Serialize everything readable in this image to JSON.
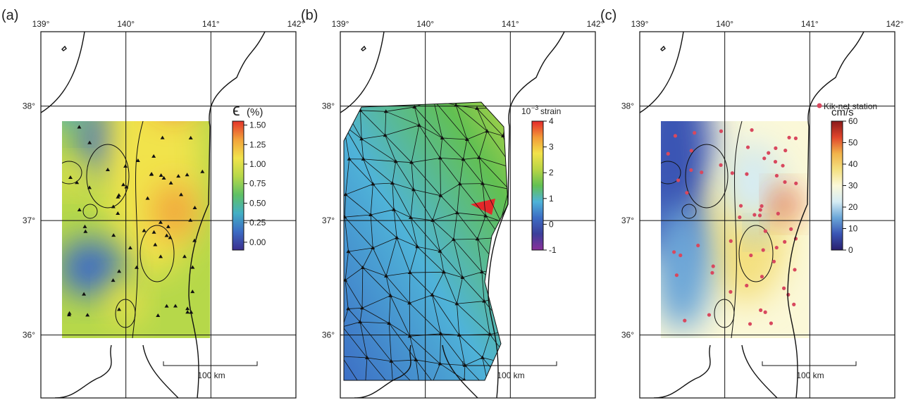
{
  "panels": [
    {
      "label": "(a)",
      "lonlim": [
        139,
        142
      ],
      "latlim": [
        35.45,
        38.65
      ],
      "lonticks": [
        {
          "value": 139,
          "label": "139°"
        },
        {
          "value": 140,
          "label": "140°"
        },
        {
          "value": 141,
          "label": "141°"
        },
        {
          "value": 142,
          "label": "142°"
        }
      ],
      "latticks": [
        {
          "value": 38,
          "label": "38°"
        },
        {
          "value": 37,
          "label": "37°"
        },
        {
          "value": 36,
          "label": "36°"
        }
      ],
      "colorbar": {
        "symbol": "ϵ",
        "title": "(%)",
        "lim": [
          -0.1,
          1.55
        ],
        "ticks": [
          {
            "value": 1.5,
            "label": "1.50"
          },
          {
            "value": 1.25,
            "label": "1.25"
          },
          {
            "value": 1,
            "label": "1.00"
          },
          {
            "value": 0.75,
            "label": "0.75"
          },
          {
            "value": 0.5,
            "label": "0.50"
          },
          {
            "value": 0.25,
            "label": "0.25"
          },
          {
            "value": 0,
            "label": "0.00"
          }
        ],
        "colors": [
          "#3b2f8f",
          "#3c6cc4",
          "#43afc4",
          "#5fc065",
          "#b6d84a",
          "#f1e34b",
          "#f2a23b",
          "#e4342a"
        ]
      },
      "scalebar": "100 km"
    },
    {
      "label": "(b)",
      "lonlim": [
        139,
        142
      ],
      "latlim": [
        35.45,
        38.65
      ],
      "lonticks": [
        {
          "value": 139,
          "label": "139°"
        },
        {
          "value": 140,
          "label": "140°"
        },
        {
          "value": 141,
          "label": "141°"
        },
        {
          "value": 142,
          "label": "142°"
        }
      ],
      "latticks": [
        {
          "value": 38,
          "label": "38°"
        },
        {
          "value": 37,
          "label": "37°"
        },
        {
          "value": 36,
          "label": "36°"
        }
      ],
      "colorbar": {
        "base": "10",
        "exponent": "−3",
        "title": "strain",
        "lim": [
          -1,
          4
        ],
        "ticks": [
          4,
          3,
          2,
          1,
          0,
          -1
        ],
        "colors": [
          "#8a2f9a",
          "#3b3f9a",
          "#3c6cc4",
          "#4fb3d8",
          "#62c052",
          "#b8d545",
          "#f2e24a",
          "#f29a38",
          "#e4282a"
        ]
      },
      "scalebar": "100 km"
    },
    {
      "label": "(c)",
      "lonlim": [
        139,
        142
      ],
      "latlim": [
        35.45,
        38.65
      ],
      "lonticks": [
        {
          "value": 139,
          "label": "139°"
        },
        {
          "value": 140,
          "label": "140°"
        },
        {
          "value": 141,
          "label": "141°"
        },
        {
          "value": 142,
          "label": "142°"
        }
      ],
      "latticks": [
        {
          "value": 38,
          "label": "38°"
        },
        {
          "value": 37,
          "label": "37°"
        },
        {
          "value": 36,
          "label": "36°"
        }
      ],
      "colorbar": {
        "title": "cm/s",
        "lim": [
          0,
          60
        ],
        "ticks": [
          60,
          50,
          40,
          30,
          20,
          10,
          0
        ],
        "colors": [
          "#2a1f6e",
          "#3a55b4",
          "#6aa6d8",
          "#d6ecf4",
          "#fbf8d8",
          "#f4e080",
          "#f2b24a",
          "#e0452c",
          "#8a1a1a"
        ]
      },
      "legend": "Kik-net station",
      "scalebar": "100 km"
    }
  ]
}
